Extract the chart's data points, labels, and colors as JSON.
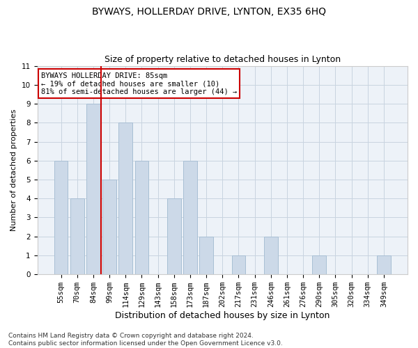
{
  "title": "BYWAYS, HOLLERDAY DRIVE, LYNTON, EX35 6HQ",
  "subtitle": "Size of property relative to detached houses in Lynton",
  "xlabel": "Distribution of detached houses by size in Lynton",
  "ylabel": "Number of detached properties",
  "categories": [
    "55sqm",
    "70sqm",
    "84sqm",
    "99sqm",
    "114sqm",
    "129sqm",
    "143sqm",
    "158sqm",
    "173sqm",
    "187sqm",
    "202sqm",
    "217sqm",
    "231sqm",
    "246sqm",
    "261sqm",
    "276sqm",
    "290sqm",
    "305sqm",
    "320sqm",
    "334sqm",
    "349sqm"
  ],
  "values": [
    6,
    4,
    9,
    5,
    8,
    6,
    0,
    4,
    6,
    2,
    0,
    1,
    0,
    2,
    0,
    0,
    1,
    0,
    0,
    0,
    1
  ],
  "bar_color": "#ccd9e8",
  "bar_edge_color": "#a8bfd4",
  "vline_x_index": 2,
  "vline_color": "#cc0000",
  "annotation_text": "BYWAYS HOLLERDAY DRIVE: 85sqm\n← 19% of detached houses are smaller (10)\n81% of semi-detached houses are larger (44) →",
  "annotation_box_color": "white",
  "annotation_box_edge_color": "#cc0000",
  "ylim": [
    0,
    11
  ],
  "yticks": [
    0,
    1,
    2,
    3,
    4,
    5,
    6,
    7,
    8,
    9,
    10,
    11
  ],
  "footer": "Contains HM Land Registry data © Crown copyright and database right 2024.\nContains public sector information licensed under the Open Government Licence v3.0.",
  "background_color": "#edf2f8",
  "grid_color": "#c8d4e0",
  "title_fontsize": 10,
  "subtitle_fontsize": 9,
  "xlabel_fontsize": 9,
  "ylabel_fontsize": 8,
  "tick_fontsize": 7.5,
  "annotation_fontsize": 7.5,
  "footer_fontsize": 6.5
}
